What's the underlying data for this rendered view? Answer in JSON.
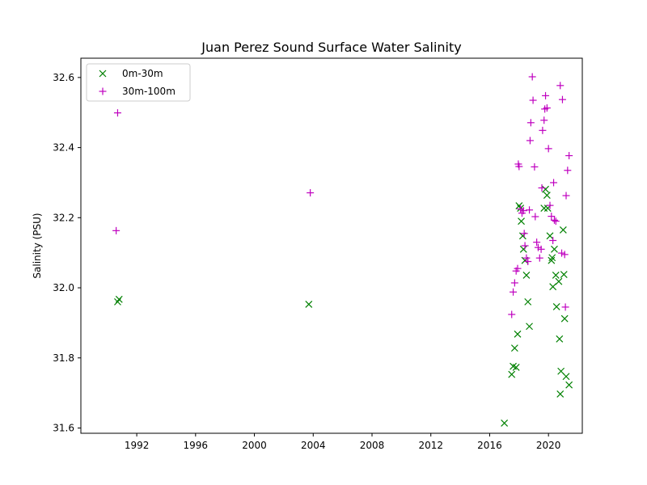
{
  "chart_data": {
    "type": "scatter",
    "title": "Juan Perez Sound Surface Water Salinity",
    "xlabel": "",
    "ylabel": "Salinity (PSU)",
    "xlim": [
      1988.2,
      2022.3
    ],
    "ylim": [
      31.585,
      32.655
    ],
    "xticks": [
      1992,
      1996,
      2000,
      2004,
      2008,
      2012,
      2016,
      2020
    ],
    "yticks": [
      31.6,
      31.8,
      32.0,
      32.2,
      32.4,
      32.6
    ],
    "ytick_labels": [
      "31.6",
      "31.8",
      "32.0",
      "32.2",
      "32.4",
      "32.6"
    ],
    "grid": false,
    "legend": "top-left",
    "series": [
      {
        "name": "0m-30m",
        "marker": "x",
        "color": "#008000",
        "points": [
          [
            1990.7,
            31.96
          ],
          [
            1990.8,
            31.967
          ],
          [
            2003.7,
            31.953
          ],
          [
            2017.0,
            31.614
          ],
          [
            2017.5,
            31.753
          ],
          [
            2017.6,
            31.776
          ],
          [
            2017.7,
            31.828
          ],
          [
            2017.8,
            31.773
          ],
          [
            2017.9,
            31.868
          ],
          [
            2018.0,
            32.234
          ],
          [
            2018.1,
            32.227
          ],
          [
            2018.15,
            32.19
          ],
          [
            2018.25,
            32.148
          ],
          [
            2018.3,
            32.11
          ],
          [
            2018.4,
            32.078
          ],
          [
            2018.5,
            32.036
          ],
          [
            2018.6,
            31.96
          ],
          [
            2018.7,
            31.89
          ],
          [
            2019.7,
            32.227
          ],
          [
            2019.8,
            32.281
          ],
          [
            2019.9,
            32.264
          ],
          [
            2019.95,
            32.227
          ],
          [
            2020.1,
            32.148
          ],
          [
            2020.2,
            32.078
          ],
          [
            2020.25,
            32.086
          ],
          [
            2020.3,
            32.003
          ],
          [
            2020.4,
            32.11
          ],
          [
            2020.5,
            32.036
          ],
          [
            2020.55,
            31.946
          ],
          [
            2020.7,
            32.018
          ],
          [
            2020.75,
            31.854
          ],
          [
            2020.85,
            31.762
          ],
          [
            2020.8,
            31.697
          ],
          [
            2021.0,
            32.165
          ],
          [
            2021.05,
            32.038
          ],
          [
            2021.1,
            31.912
          ],
          [
            2021.2,
            31.747
          ],
          [
            2021.4,
            31.723
          ]
        ]
      },
      {
        "name": "30m-100m",
        "marker": "+",
        "color": "#bf00bf",
        "points": [
          [
            1990.7,
            32.499
          ],
          [
            1990.6,
            32.163
          ],
          [
            2003.8,
            32.271
          ],
          [
            2017.5,
            31.924
          ],
          [
            2017.6,
            31.988
          ],
          [
            2017.7,
            32.014
          ],
          [
            2017.8,
            32.048
          ],
          [
            2017.9,
            32.055
          ],
          [
            2017.95,
            32.353
          ],
          [
            2018.0,
            32.346
          ],
          [
            2018.1,
            32.225
          ],
          [
            2018.2,
            32.213
          ],
          [
            2018.3,
            32.22
          ],
          [
            2018.35,
            32.155
          ],
          [
            2018.4,
            32.12
          ],
          [
            2018.5,
            32.085
          ],
          [
            2018.6,
            32.075
          ],
          [
            2018.7,
            32.222
          ],
          [
            2018.75,
            32.42
          ],
          [
            2018.8,
            32.471
          ],
          [
            2018.9,
            32.602
          ],
          [
            2018.95,
            32.535
          ],
          [
            2019.05,
            32.345
          ],
          [
            2019.1,
            32.203
          ],
          [
            2019.2,
            32.13
          ],
          [
            2019.3,
            32.115
          ],
          [
            2019.4,
            32.085
          ],
          [
            2019.5,
            32.11
          ],
          [
            2019.55,
            32.285
          ],
          [
            2019.6,
            32.449
          ],
          [
            2019.7,
            32.478
          ],
          [
            2019.75,
            32.51
          ],
          [
            2019.8,
            32.548
          ],
          [
            2019.9,
            32.513
          ],
          [
            2020.0,
            32.397
          ],
          [
            2020.1,
            32.235
          ],
          [
            2020.2,
            32.204
          ],
          [
            2020.3,
            32.135
          ],
          [
            2020.35,
            32.3
          ],
          [
            2020.4,
            32.193
          ],
          [
            2020.5,
            32.19
          ],
          [
            2020.8,
            32.577
          ],
          [
            2020.9,
            32.099
          ],
          [
            2020.95,
            32.537
          ],
          [
            2021.1,
            32.095
          ],
          [
            2021.15,
            31.945
          ],
          [
            2021.2,
            32.263
          ],
          [
            2021.3,
            32.335
          ],
          [
            2021.4,
            32.377
          ]
        ]
      }
    ]
  }
}
